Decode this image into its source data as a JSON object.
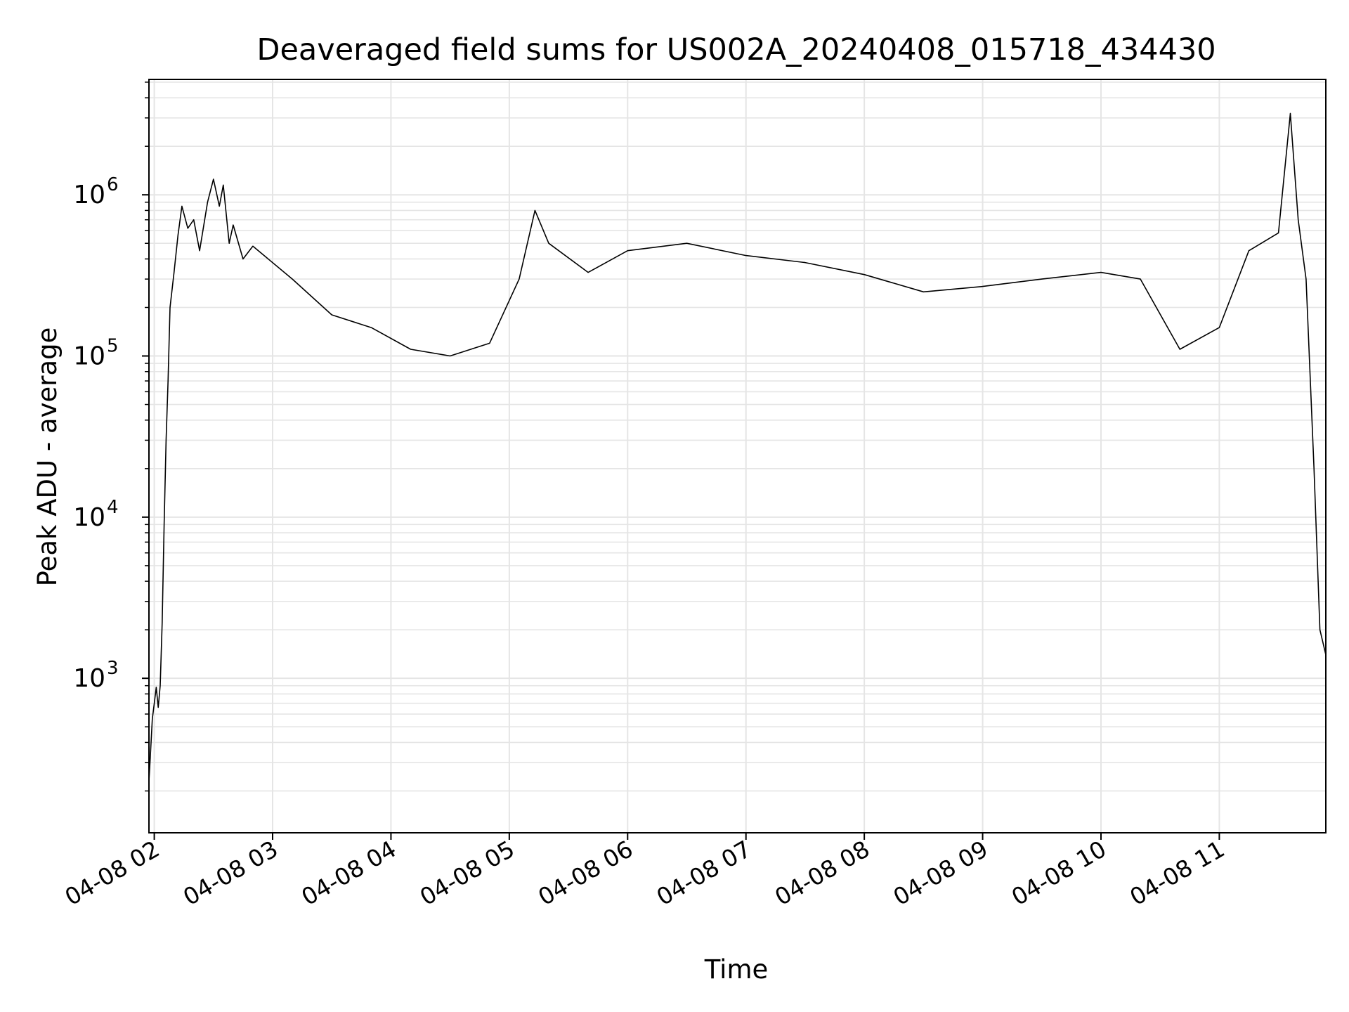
{
  "chart_data": {
    "type": "line",
    "title": "Deaveraged field sums for US002A_20240408_015718_434430",
    "xlabel": "Time",
    "ylabel": "Peak ADU - average",
    "x_scale": "time",
    "y_scale": "log",
    "xlim": [
      "2024-04-08 01:57:18",
      "2024-04-08 11:54:00"
    ],
    "ylim": [
      110,
      5200000
    ],
    "grid": true,
    "legend": "none",
    "line_color": "#000000",
    "grid_color": "#e5e5e5",
    "x_ticks": [
      {
        "t": "2024-04-08 02:00",
        "label": "04-08 02"
      },
      {
        "t": "2024-04-08 03:00",
        "label": "04-08 03"
      },
      {
        "t": "2024-04-08 04:00",
        "label": "04-08 04"
      },
      {
        "t": "2024-04-08 05:00",
        "label": "04-08 05"
      },
      {
        "t": "2024-04-08 06:00",
        "label": "04-08 06"
      },
      {
        "t": "2024-04-08 07:00",
        "label": "04-08 07"
      },
      {
        "t": "2024-04-08 08:00",
        "label": "04-08 08"
      },
      {
        "t": "2024-04-08 09:00",
        "label": "04-08 09"
      },
      {
        "t": "2024-04-08 10:00",
        "label": "04-08 10"
      },
      {
        "t": "2024-04-08 11:00",
        "label": "04-08 11"
      }
    ],
    "y_ticks": [
      {
        "value": 1000,
        "base": "10",
        "exp": "3"
      },
      {
        "value": 10000,
        "base": "10",
        "exp": "4"
      },
      {
        "value": 100000,
        "base": "10",
        "exp": "5"
      },
      {
        "value": 1000000,
        "base": "10",
        "exp": "6"
      }
    ],
    "series": [
      {
        "points": [
          [
            "2024-04-08 01:57:18",
            230
          ],
          [
            "2024-04-08 01:58:00",
            330
          ],
          [
            "2024-04-08 01:59:00",
            560
          ],
          [
            "2024-04-08 02:00:00",
            700
          ],
          [
            "2024-04-08 02:01:00",
            880
          ],
          [
            "2024-04-08 02:02:00",
            660
          ],
          [
            "2024-04-08 02:03:00",
            900
          ],
          [
            "2024-04-08 02:04:00",
            2200
          ],
          [
            "2024-04-08 02:05:00",
            9000
          ],
          [
            "2024-04-08 02:06:00",
            30000
          ],
          [
            "2024-04-08 02:07:00",
            70000
          ],
          [
            "2024-04-08 02:08:00",
            200000
          ],
          [
            "2024-04-08 02:10:00",
            330000
          ],
          [
            "2024-04-08 02:12:00",
            560000
          ],
          [
            "2024-04-08 02:14:00",
            850000
          ],
          [
            "2024-04-08 02:17:00",
            620000
          ],
          [
            "2024-04-08 02:20:00",
            700000
          ],
          [
            "2024-04-08 02:23:00",
            450000
          ],
          [
            "2024-04-08 02:27:00",
            900000
          ],
          [
            "2024-04-08 02:30:00",
            1250000
          ],
          [
            "2024-04-08 02:33:00",
            850000
          ],
          [
            "2024-04-08 02:35:00",
            1150000
          ],
          [
            "2024-04-08 02:38:00",
            500000
          ],
          [
            "2024-04-08 02:40:00",
            650000
          ],
          [
            "2024-04-08 02:45:00",
            400000
          ],
          [
            "2024-04-08 02:50:00",
            480000
          ],
          [
            "2024-04-08 03:10:00",
            300000
          ],
          [
            "2024-04-08 03:30:00",
            180000
          ],
          [
            "2024-04-08 03:50:00",
            150000
          ],
          [
            "2024-04-08 04:10:00",
            110000
          ],
          [
            "2024-04-08 04:30:00",
            100000
          ],
          [
            "2024-04-08 04:50:00",
            120000
          ],
          [
            "2024-04-08 05:05:00",
            300000
          ],
          [
            "2024-04-08 05:13:00",
            800000
          ],
          [
            "2024-04-08 05:20:00",
            500000
          ],
          [
            "2024-04-08 05:40:00",
            330000
          ],
          [
            "2024-04-08 06:00:00",
            450000
          ],
          [
            "2024-04-08 06:30:00",
            500000
          ],
          [
            "2024-04-08 07:00:00",
            420000
          ],
          [
            "2024-04-08 07:30:00",
            380000
          ],
          [
            "2024-04-08 08:00:00",
            320000
          ],
          [
            "2024-04-08 08:30:00",
            250000
          ],
          [
            "2024-04-08 09:00:00",
            270000
          ],
          [
            "2024-04-08 09:30:00",
            300000
          ],
          [
            "2024-04-08 10:00:00",
            330000
          ],
          [
            "2024-04-08 10:20:00",
            300000
          ],
          [
            "2024-04-08 10:40:00",
            110000
          ],
          [
            "2024-04-08 11:00:00",
            150000
          ],
          [
            "2024-04-08 11:15:00",
            450000
          ],
          [
            "2024-04-08 11:30:00",
            580000
          ],
          [
            "2024-04-08 11:36:00",
            3200000
          ],
          [
            "2024-04-08 11:40:00",
            700000
          ],
          [
            "2024-04-08 11:44:00",
            300000
          ],
          [
            "2024-04-08 11:48:00",
            20000
          ],
          [
            "2024-04-08 11:51:00",
            2000
          ],
          [
            "2024-04-08 11:54:00",
            1400
          ]
        ]
      }
    ]
  }
}
